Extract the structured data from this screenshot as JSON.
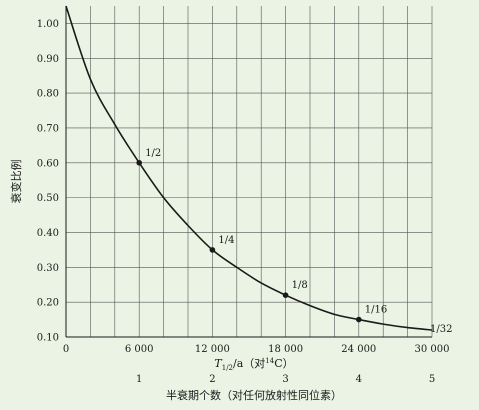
{
  "chart_data": {
    "type": "line",
    "title": "",
    "xlabel": "T1/2/a（对14C）",
    "xlabel_parts": {
      "main": "T",
      "sub": "1/2",
      "unit": "/a（对",
      "sup": "14",
      "tail": "C）"
    },
    "ylabel": "衰变比例",
    "secondary_xlabel": "半衰期个数（对任何放射性同位素）",
    "xlim": [
      0,
      30000
    ],
    "ylim": [
      0.1,
      1.05
    ],
    "grid": true,
    "x_ticks": [
      0,
      6000,
      12000,
      18000,
      24000,
      30000
    ],
    "x_tick_labels": [
      "0",
      "6 000",
      "12 000",
      "18 000",
      "24 000",
      "30 000"
    ],
    "y_ticks": [
      0.1,
      0.2,
      0.3,
      0.4,
      0.5,
      0.6,
      0.7,
      0.8,
      0.9,
      1.0
    ],
    "y_tick_labels": [
      "0.10",
      "0.20",
      "0.30",
      "0.40",
      "0.50",
      "0.60",
      "0.70",
      "0.80",
      "0.90",
      "1.00"
    ],
    "secondary_x_ticks": [
      6000,
      12000,
      18000,
      24000,
      30000
    ],
    "secondary_x_tick_labels": [
      "1",
      "2",
      "3",
      "4",
      "5"
    ],
    "series": [
      {
        "x": [
          0,
          2000,
          4000,
          6000,
          8000,
          10000,
          12000,
          14000,
          16000,
          18000,
          20000,
          22000,
          24000,
          26000,
          28000,
          30000
        ],
        "y": [
          1.05,
          0.84,
          0.71,
          0.6,
          0.5,
          0.42,
          0.35,
          0.3,
          0.255,
          0.22,
          0.19,
          0.165,
          0.15,
          0.137,
          0.127,
          0.12
        ]
      }
    ],
    "points": [
      {
        "x": 6000,
        "y": 0.6,
        "label": "1/2"
      },
      {
        "x": 12000,
        "y": 0.35,
        "label": "1/4"
      },
      {
        "x": 18000,
        "y": 0.22,
        "label": "1/8"
      },
      {
        "x": 24000,
        "y": 0.15,
        "label": "1/16"
      }
    ],
    "end_label": "1/32",
    "colors": {
      "line": "#1a1a1a",
      "grid": "#555555",
      "background": "#eaf3e4"
    }
  }
}
